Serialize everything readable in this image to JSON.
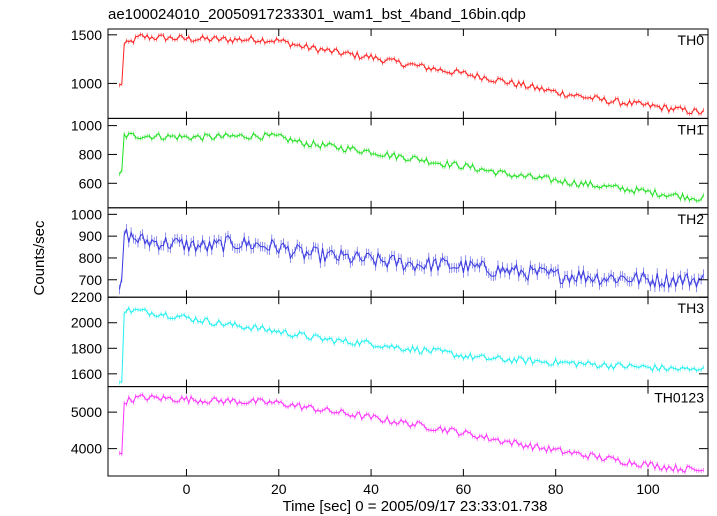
{
  "chart_data": {
    "type": "line",
    "title": "ae100024010_20050917233301_wam1_bst_4band_16bin.qdp",
    "xlabel": "Time [sec] 0 = 2005/09/17 23:33:01.738",
    "ylabel": "Counts/sec",
    "xlim": [
      -17,
      113
    ],
    "xticks": [
      0,
      20,
      40,
      60,
      80,
      100
    ],
    "grid": false,
    "panels": [
      {
        "name": "TH0",
        "color": "#ff2020",
        "ylim": [
          640,
          1560
        ],
        "yticks": [
          1000,
          1500
        ],
        "series": [
          [
            -14.5,
            970
          ],
          [
            -14,
            1010
          ],
          [
            -13.5,
            1390
          ],
          [
            -10,
            1480
          ],
          [
            -5,
            1470
          ],
          [
            0,
            1460
          ],
          [
            5,
            1455
          ],
          [
            10,
            1450
          ],
          [
            15,
            1455
          ],
          [
            20,
            1440
          ],
          [
            25,
            1380
          ],
          [
            30,
            1340
          ],
          [
            35,
            1300
          ],
          [
            40,
            1270
          ],
          [
            45,
            1220
          ],
          [
            50,
            1180
          ],
          [
            55,
            1140
          ],
          [
            60,
            1100
          ],
          [
            65,
            1060
          ],
          [
            70,
            1010
          ],
          [
            75,
            960
          ],
          [
            80,
            910
          ],
          [
            85,
            870
          ],
          [
            90,
            830
          ],
          [
            95,
            800
          ],
          [
            100,
            770
          ],
          [
            105,
            740
          ],
          [
            110,
            710
          ],
          [
            112,
            700
          ]
        ]
      },
      {
        "name": "TH1",
        "color": "#20e020",
        "ylim": [
          430,
          1050
        ],
        "yticks": [
          600,
          800,
          1000
        ],
        "series": [
          [
            -14.5,
            650
          ],
          [
            -14,
            680
          ],
          [
            -13.5,
            930
          ],
          [
            -10,
            930
          ],
          [
            -5,
            925
          ],
          [
            0,
            920
          ],
          [
            5,
            920
          ],
          [
            10,
            925
          ],
          [
            15,
            930
          ],
          [
            20,
            920
          ],
          [
            25,
            880
          ],
          [
            30,
            860
          ],
          [
            35,
            840
          ],
          [
            40,
            820
          ],
          [
            45,
            790
          ],
          [
            50,
            770
          ],
          [
            55,
            740
          ],
          [
            60,
            720
          ],
          [
            65,
            690
          ],
          [
            70,
            660
          ],
          [
            75,
            640
          ],
          [
            80,
            620
          ],
          [
            85,
            600
          ],
          [
            90,
            580
          ],
          [
            95,
            560
          ],
          [
            100,
            540
          ],
          [
            105,
            520
          ],
          [
            110,
            500
          ],
          [
            112,
            495
          ]
        ]
      },
      {
        "name": "TH2",
        "color": "#3838e0",
        "ylim": [
          620,
          1030
        ],
        "yticks": [
          700,
          800,
          900,
          1000
        ],
        "series": [
          [
            -14.5,
            650
          ],
          [
            -14,
            680
          ],
          [
            -13.5,
            910
          ],
          [
            -10,
            880
          ],
          [
            -5,
            870
          ],
          [
            0,
            860
          ],
          [
            5,
            850
          ],
          [
            10,
            870
          ],
          [
            15,
            860
          ],
          [
            20,
            850
          ],
          [
            25,
            820
          ],
          [
            30,
            810
          ],
          [
            35,
            800
          ],
          [
            40,
            790
          ],
          [
            45,
            780
          ],
          [
            50,
            770
          ],
          [
            55,
            770
          ],
          [
            60,
            760
          ],
          [
            65,
            750
          ],
          [
            70,
            740
          ],
          [
            75,
            730
          ],
          [
            80,
            720
          ],
          [
            85,
            720
          ],
          [
            90,
            710
          ],
          [
            95,
            710
          ],
          [
            100,
            700
          ],
          [
            105,
            700
          ],
          [
            110,
            700
          ],
          [
            112,
            700
          ]
        ]
      },
      {
        "name": "TH3",
        "color": "#20f0f0",
        "ylim": [
          1500,
          2200
        ],
        "yticks": [
          1600,
          1800,
          2000,
          2200
        ],
        "series": [
          [
            -14.5,
            1520
          ],
          [
            -14,
            1560
          ],
          [
            -13.5,
            2100
          ],
          [
            -10,
            2090
          ],
          [
            -5,
            2070
          ],
          [
            0,
            2040
          ],
          [
            5,
            2010
          ],
          [
            10,
            1980
          ],
          [
            15,
            1960
          ],
          [
            20,
            1930
          ],
          [
            25,
            1900
          ],
          [
            30,
            1870
          ],
          [
            35,
            1850
          ],
          [
            40,
            1840
          ],
          [
            45,
            1810
          ],
          [
            50,
            1790
          ],
          [
            55,
            1770
          ],
          [
            60,
            1740
          ],
          [
            65,
            1720
          ],
          [
            70,
            1710
          ],
          [
            75,
            1700
          ],
          [
            80,
            1690
          ],
          [
            85,
            1680
          ],
          [
            90,
            1670
          ],
          [
            95,
            1660
          ],
          [
            100,
            1650
          ],
          [
            105,
            1640
          ],
          [
            110,
            1630
          ],
          [
            112,
            1660
          ]
        ]
      },
      {
        "name": "TH0123",
        "color": "#ff30ff",
        "ylim": [
          3250,
          5700
        ],
        "yticks": [
          4000,
          5000
        ],
        "series": [
          [
            -14.5,
            3800
          ],
          [
            -14,
            3850
          ],
          [
            -13.5,
            5300
          ],
          [
            -10,
            5400
          ],
          [
            -5,
            5380
          ],
          [
            0,
            5350
          ],
          [
            5,
            5320
          ],
          [
            10,
            5300
          ],
          [
            15,
            5280
          ],
          [
            20,
            5250
          ],
          [
            25,
            5150
          ],
          [
            30,
            5050
          ],
          [
            35,
            4950
          ],
          [
            40,
            4850
          ],
          [
            45,
            4750
          ],
          [
            50,
            4650
          ],
          [
            55,
            4550
          ],
          [
            60,
            4430
          ],
          [
            65,
            4300
          ],
          [
            70,
            4180
          ],
          [
            75,
            4060
          ],
          [
            80,
            3950
          ],
          [
            85,
            3850
          ],
          [
            90,
            3750
          ],
          [
            95,
            3650
          ],
          [
            100,
            3560
          ],
          [
            105,
            3480
          ],
          [
            110,
            3420
          ],
          [
            112,
            3400
          ]
        ]
      }
    ]
  }
}
